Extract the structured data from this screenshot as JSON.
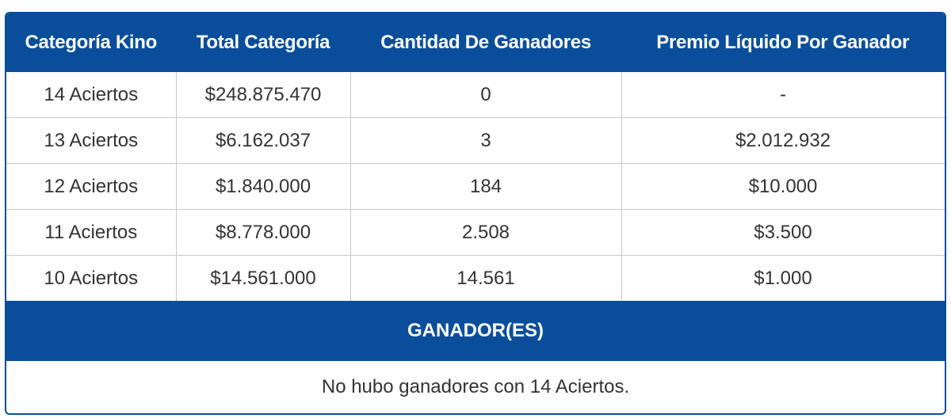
{
  "table": {
    "headers": [
      "Categoría Kino",
      "Total Categoría",
      "Cantidad De Ganadores",
      "Premio Líquido Por Ganador"
    ],
    "rows": [
      [
        "14 Aciertos",
        "$248.875.470",
        "0",
        "-"
      ],
      [
        "13 Aciertos",
        "$6.162.037",
        "3",
        "$2.012.932"
      ],
      [
        "12 Aciertos",
        "$1.840.000",
        "184",
        "$10.000"
      ],
      [
        "11 Aciertos",
        "$8.778.000",
        "2.508",
        "$3.500"
      ],
      [
        "10 Aciertos",
        "$14.561.000",
        "14.561",
        "$1.000"
      ]
    ]
  },
  "winners": {
    "title": "GANADOR(ES)",
    "message": "No hubo ganadores con 14 Aciertos."
  },
  "colors": {
    "header_blue": "#0a4e9b",
    "text": "#333333",
    "grid": "#c8c8c8"
  }
}
